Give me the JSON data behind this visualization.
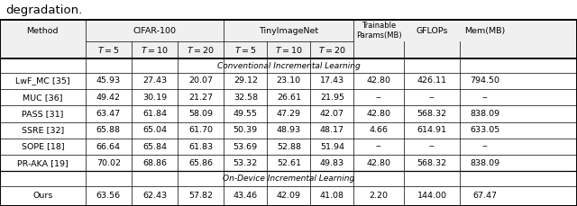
{
  "title_text": "degradation.",
  "section_conv": "Conventional Incremental Learning",
  "section_device": "On-Device Incremental Learning",
  "methods": [
    "LwF_MC [35]",
    "MUC [36]",
    "PASS [31]",
    "SSRE [32]",
    "SOPE [18]",
    "PR-AKA [19]"
  ],
  "data_conv": [
    [
      "45.93",
      "27.43",
      "20.07",
      "29.12",
      "23.10",
      "17.43",
      "42.80",
      "426.11",
      "794.50"
    ],
    [
      "49.42",
      "30.19",
      "21.27",
      "32.58",
      "26.61",
      "21.95",
      "--",
      "--",
      "--"
    ],
    [
      "63.47",
      "61.84",
      "58.09",
      "49.55",
      "47.29",
      "42.07",
      "42.80",
      "568.32",
      "838.09"
    ],
    [
      "65.88",
      "65.04",
      "61.70",
      "50.39",
      "48.93",
      "48.17",
      "4.66",
      "614.91",
      "633.05"
    ],
    [
      "66.64",
      "65.84",
      "61.83",
      "53.69",
      "52.88",
      "51.94",
      "--",
      "--",
      "--"
    ],
    [
      "70.02",
      "68.86",
      "65.86",
      "53.32",
      "52.61",
      "49.83",
      "42.80",
      "568.32",
      "838.09"
    ]
  ],
  "data_ours": [
    "63.56",
    "62.43",
    "57.82",
    "43.46",
    "42.09",
    "41.08",
    "2.20",
    "144.00",
    "67.47"
  ],
  "bx": [
    0.0,
    0.148,
    0.228,
    0.308,
    0.388,
    0.463,
    0.538,
    0.613,
    0.7,
    0.797,
    0.883,
    1.0
  ],
  "title_fs": 9.5,
  "header_fs": 6.8,
  "data_fs": 6.8,
  "section_fs": 6.5,
  "lw_thick": 1.4,
  "lw_thin": 0.5,
  "lw_mid": 0.9,
  "header_bg": "#f0f0f0"
}
